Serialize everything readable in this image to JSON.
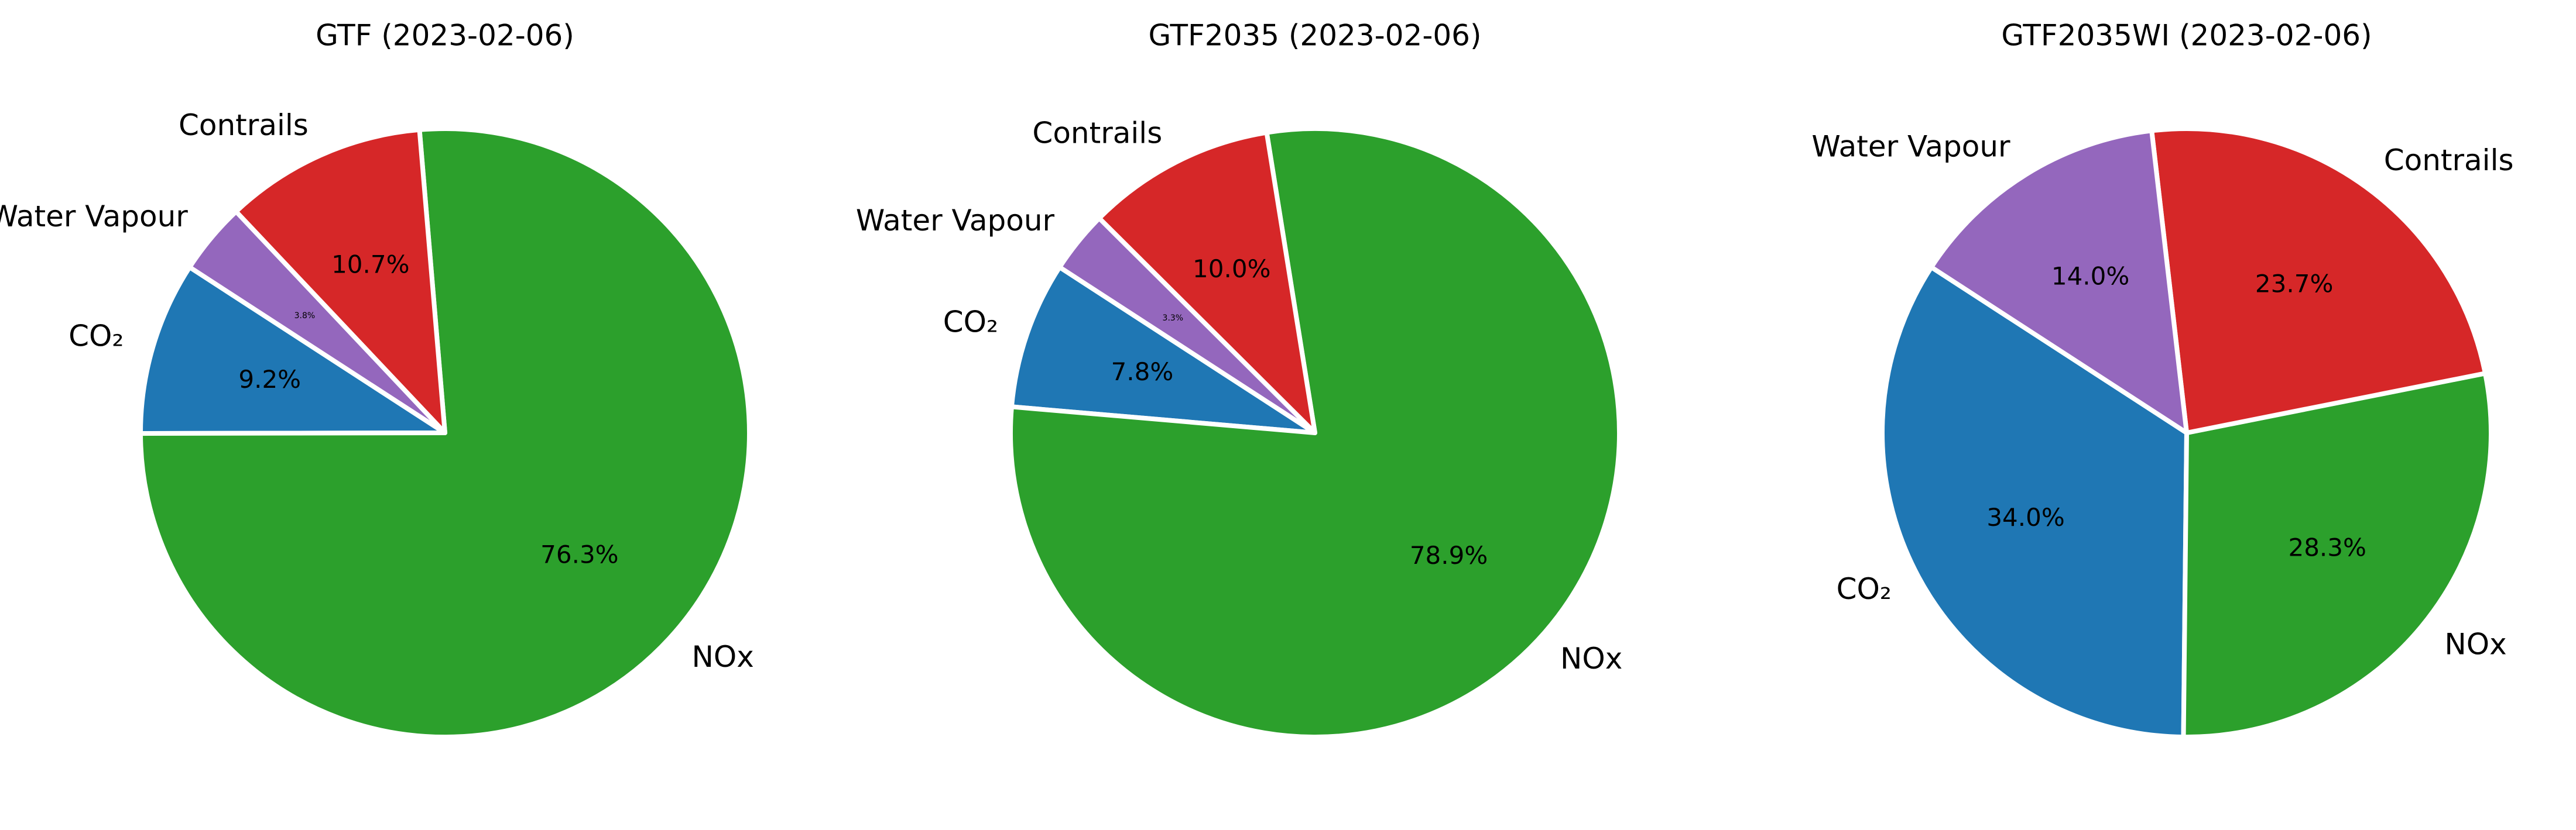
{
  "colors": {
    "CO₂": "#1f77b4",
    "NOx": "#2ca02c",
    "Contrails": "#d62728",
    "Water Vapour": "#9467bd"
  },
  "chart_data": [
    {
      "type": "pie",
      "title": "GTF (2023-02-06)",
      "labels": [
        "CO₂",
        "NOx",
        "Contrails",
        "Water Vapour"
      ],
      "values": [
        9.2,
        76.3,
        10.7,
        3.8
      ],
      "value_labels": [
        "9.2%",
        "76.3%",
        "10.7%",
        "3.8%"
      ],
      "start_angle_deg": 147,
      "direction": "counterclockwise"
    },
    {
      "type": "pie",
      "title": "GTF2035 (2023-02-06)",
      "labels": [
        "CO₂",
        "NOx",
        "Contrails",
        "Water Vapour"
      ],
      "values": [
        7.8,
        78.9,
        10.0,
        3.3
      ],
      "value_labels": [
        "7.8%",
        "78.9%",
        "10.0%",
        "3.3%"
      ],
      "start_angle_deg": 147,
      "direction": "counterclockwise"
    },
    {
      "type": "pie",
      "title": "GTF2035WI (2023-02-06)",
      "labels": [
        "CO₂",
        "NOx",
        "Contrails",
        "Water Vapour"
      ],
      "values": [
        34.0,
        28.3,
        23.7,
        14.0
      ],
      "value_labels": [
        "34.0%",
        "28.3%",
        "23.7%",
        "14.0%"
      ],
      "start_angle_deg": 147,
      "direction": "counterclockwise"
    }
  ]
}
